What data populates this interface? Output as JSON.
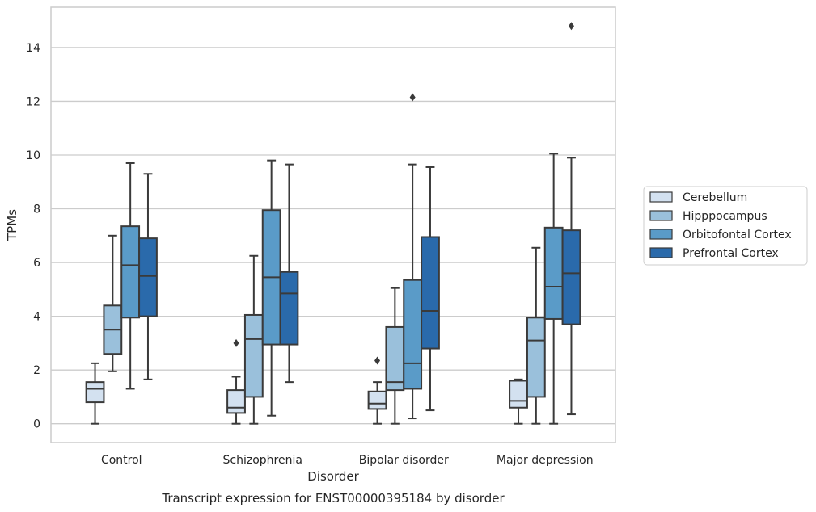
{
  "chart_data": {
    "type": "box",
    "title": "",
    "caption": "Transcript expression for ENST00000395184 by disorder",
    "xlabel": "Disorder",
    "ylabel": "TPMs",
    "ylim": [
      -0.7,
      15.5
    ],
    "yticks": [
      0,
      2,
      4,
      6,
      8,
      10,
      12,
      14
    ],
    "grid": "horizontal",
    "legend_position": "right",
    "categories": [
      "Control",
      "Schizophrenia",
      "Bipolar disorder",
      "Major depression"
    ],
    "series": [
      {
        "name": "Cerebellum",
        "color": "#d3e1f0",
        "boxes": [
          {
            "whisker_low": 0.0,
            "q1": 0.8,
            "median": 1.3,
            "q3": 1.55,
            "whisker_high": 2.25,
            "outliers": []
          },
          {
            "whisker_low": 0.0,
            "q1": 0.4,
            "median": 0.6,
            "q3": 1.25,
            "whisker_high": 1.75,
            "outliers": [
              3.0
            ]
          },
          {
            "whisker_low": 0.0,
            "q1": 0.55,
            "median": 0.75,
            "q3": 1.2,
            "whisker_high": 1.55,
            "outliers": [
              2.35
            ]
          },
          {
            "whisker_low": 0.0,
            "q1": 0.6,
            "median": 0.85,
            "q3": 1.6,
            "whisker_high": 1.65,
            "outliers": []
          }
        ]
      },
      {
        "name": "Hipppocampus",
        "color": "#9ac0db",
        "boxes": [
          {
            "whisker_low": 1.95,
            "q1": 2.6,
            "median": 3.5,
            "q3": 4.4,
            "whisker_high": 7.0,
            "outliers": []
          },
          {
            "whisker_low": 0.0,
            "q1": 1.0,
            "median": 3.15,
            "q3": 4.05,
            "whisker_high": 6.25,
            "outliers": []
          },
          {
            "whisker_low": 0.0,
            "q1": 1.25,
            "median": 1.55,
            "q3": 3.6,
            "whisker_high": 5.05,
            "outliers": []
          },
          {
            "whisker_low": 0.0,
            "q1": 1.0,
            "median": 3.1,
            "q3": 3.95,
            "whisker_high": 6.55,
            "outliers": []
          }
        ]
      },
      {
        "name": "Orbitofontal Cortex",
        "color": "#5a9bc8",
        "boxes": [
          {
            "whisker_low": 1.3,
            "q1": 3.95,
            "median": 5.9,
            "q3": 7.35,
            "whisker_high": 9.7,
            "outliers": []
          },
          {
            "whisker_low": 0.3,
            "q1": 2.95,
            "median": 5.45,
            "q3": 7.95,
            "whisker_high": 9.8,
            "outliers": []
          },
          {
            "whisker_low": 0.2,
            "q1": 1.3,
            "median": 2.25,
            "q3": 5.35,
            "whisker_high": 9.65,
            "outliers": [
              12.15
            ]
          },
          {
            "whisker_low": 0.0,
            "q1": 3.9,
            "median": 5.1,
            "q3": 7.3,
            "whisker_high": 10.05,
            "outliers": []
          }
        ]
      },
      {
        "name": "Prefrontal Cortex",
        "color": "#2a6aab",
        "boxes": [
          {
            "whisker_low": 1.65,
            "q1": 4.0,
            "median": 5.5,
            "q3": 6.9,
            "whisker_high": 9.3,
            "outliers": []
          },
          {
            "whisker_low": 1.55,
            "q1": 2.95,
            "median": 4.85,
            "q3": 5.65,
            "whisker_high": 9.65,
            "outliers": []
          },
          {
            "whisker_low": 0.5,
            "q1": 2.8,
            "median": 4.2,
            "q3": 6.95,
            "whisker_high": 9.55,
            "outliers": []
          },
          {
            "whisker_low": 0.35,
            "q1": 3.7,
            "median": 5.6,
            "q3": 7.2,
            "whisker_high": 9.9,
            "outliers": [
              14.8
            ]
          }
        ]
      }
    ]
  }
}
